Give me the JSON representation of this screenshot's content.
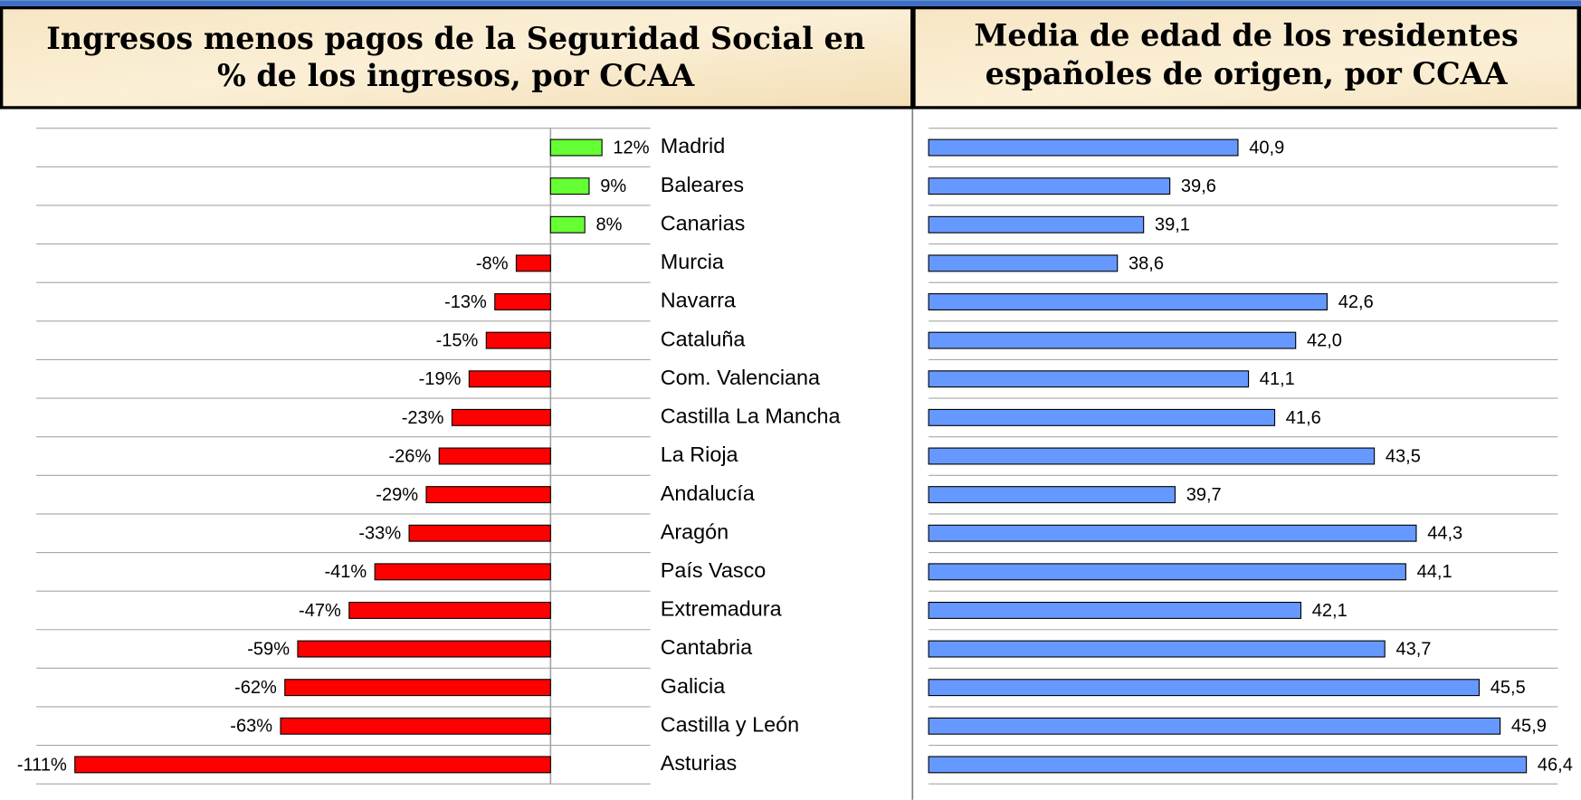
{
  "chart_data": [
    {
      "type": "bar",
      "orientation": "horizontal",
      "title": [
        "Ingresos menos pagos de la Seguridad Social en",
        "% de los ingresos, por CCAA"
      ],
      "categories": [
        "Madrid",
        "Baleares",
        "Canarias",
        "Murcia",
        "Navarra",
        "Cataluña",
        "Com. Valenciana",
        "Castilla La Mancha",
        "La Rioja",
        "Andalucía",
        "Aragón",
        "País Vasco",
        "Extremadura",
        "Cantabria",
        "Galicia",
        "Castilla y León",
        "Asturias"
      ],
      "values": [
        12,
        9,
        8,
        -8,
        -13,
        -15,
        -19,
        -23,
        -26,
        -29,
        -33,
        -41,
        -47,
        -59,
        -62,
        -63,
        -111
      ],
      "value_labels": [
        "12%",
        "9%",
        "8%",
        "-8%",
        "-13%",
        "-15%",
        "-19%",
        "-23%",
        "-26%",
        "-29%",
        "-33%",
        "-41%",
        "-47%",
        "-59%",
        "-62%",
        "-63%",
        "-111%"
      ],
      "positive_color": "#66ff33",
      "negative_color": "#ff0000",
      "xlim": [
        -120,
        20
      ],
      "grid": true
    },
    {
      "type": "bar",
      "orientation": "horizontal",
      "title": [
        "Media de edad de los residentes",
        "españoles de origen, por CCAA"
      ],
      "values": [
        40.9,
        39.6,
        39.1,
        38.6,
        42.6,
        42.0,
        41.1,
        41.6,
        43.5,
        39.7,
        44.3,
        44.1,
        42.1,
        43.7,
        45.5,
        45.9,
        46.4
      ],
      "value_labels": [
        "40,9",
        "39,6",
        "39,1",
        "38,6",
        "42,6",
        "42,0",
        "41,1",
        "41,6",
        "43,5",
        "39,7",
        "44,3",
        "44,1",
        "42,1",
        "43,7",
        "45,5",
        "45,9",
        "46,4"
      ],
      "color": "#6699ff",
      "xlim": [
        35,
        47
      ],
      "grid": true
    }
  ]
}
